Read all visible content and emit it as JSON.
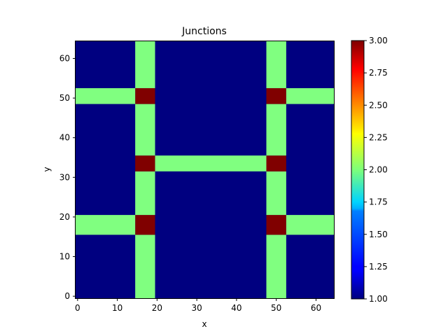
{
  "chart_data": {
    "type": "heatmap",
    "title": "Junctions",
    "xlabel": "x",
    "ylabel": "y",
    "xlim": [
      -0.5,
      64.5
    ],
    "ylim": [
      -0.5,
      64.5
    ],
    "x_ticks": [
      0,
      10,
      20,
      30,
      40,
      50,
      60
    ],
    "y_ticks": [
      0,
      10,
      20,
      30,
      40,
      50,
      60
    ],
    "grid": false,
    "colormap": "jet",
    "vmin": 1.0,
    "vmax": 3.0,
    "colorbar_ticks": [
      "1.00",
      "1.25",
      "1.50",
      "1.75",
      "2.00",
      "2.25",
      "2.50",
      "2.75",
      "3.00"
    ],
    "background_value": 1,
    "regions": [
      {
        "x": [
          15,
          19
        ],
        "y": [
          0,
          15
        ],
        "value": 2
      },
      {
        "x": [
          15,
          19
        ],
        "y": [
          16,
          20
        ],
        "value": 3
      },
      {
        "x": [
          15,
          19
        ],
        "y": [
          21,
          31
        ],
        "value": 2
      },
      {
        "x": [
          15,
          19
        ],
        "y": [
          32,
          35
        ],
        "value": 3
      },
      {
        "x": [
          15,
          19
        ],
        "y": [
          36,
          48
        ],
        "value": 2
      },
      {
        "x": [
          15,
          19
        ],
        "y": [
          49,
          52
        ],
        "value": 3
      },
      {
        "x": [
          15,
          19
        ],
        "y": [
          53,
          64
        ],
        "value": 2
      },
      {
        "x": [
          48,
          52
        ],
        "y": [
          0,
          15
        ],
        "value": 2
      },
      {
        "x": [
          48,
          52
        ],
        "y": [
          16,
          20
        ],
        "value": 3
      },
      {
        "x": [
          48,
          52
        ],
        "y": [
          21,
          31
        ],
        "value": 2
      },
      {
        "x": [
          48,
          52
        ],
        "y": [
          32,
          35
        ],
        "value": 3
      },
      {
        "x": [
          48,
          52
        ],
        "y": [
          36,
          48
        ],
        "value": 2
      },
      {
        "x": [
          48,
          52
        ],
        "y": [
          49,
          52
        ],
        "value": 3
      },
      {
        "x": [
          48,
          52
        ],
        "y": [
          53,
          64
        ],
        "value": 2
      },
      {
        "x": [
          0,
          14
        ],
        "y": [
          16,
          20
        ],
        "value": 2
      },
      {
        "x": [
          53,
          64
        ],
        "y": [
          16,
          20
        ],
        "value": 2
      },
      {
        "x": [
          0,
          14
        ],
        "y": [
          49,
          52
        ],
        "value": 2
      },
      {
        "x": [
          53,
          64
        ],
        "y": [
          49,
          52
        ],
        "value": 2
      },
      {
        "x": [
          20,
          47
        ],
        "y": [
          32,
          35
        ],
        "value": 2
      }
    ]
  }
}
